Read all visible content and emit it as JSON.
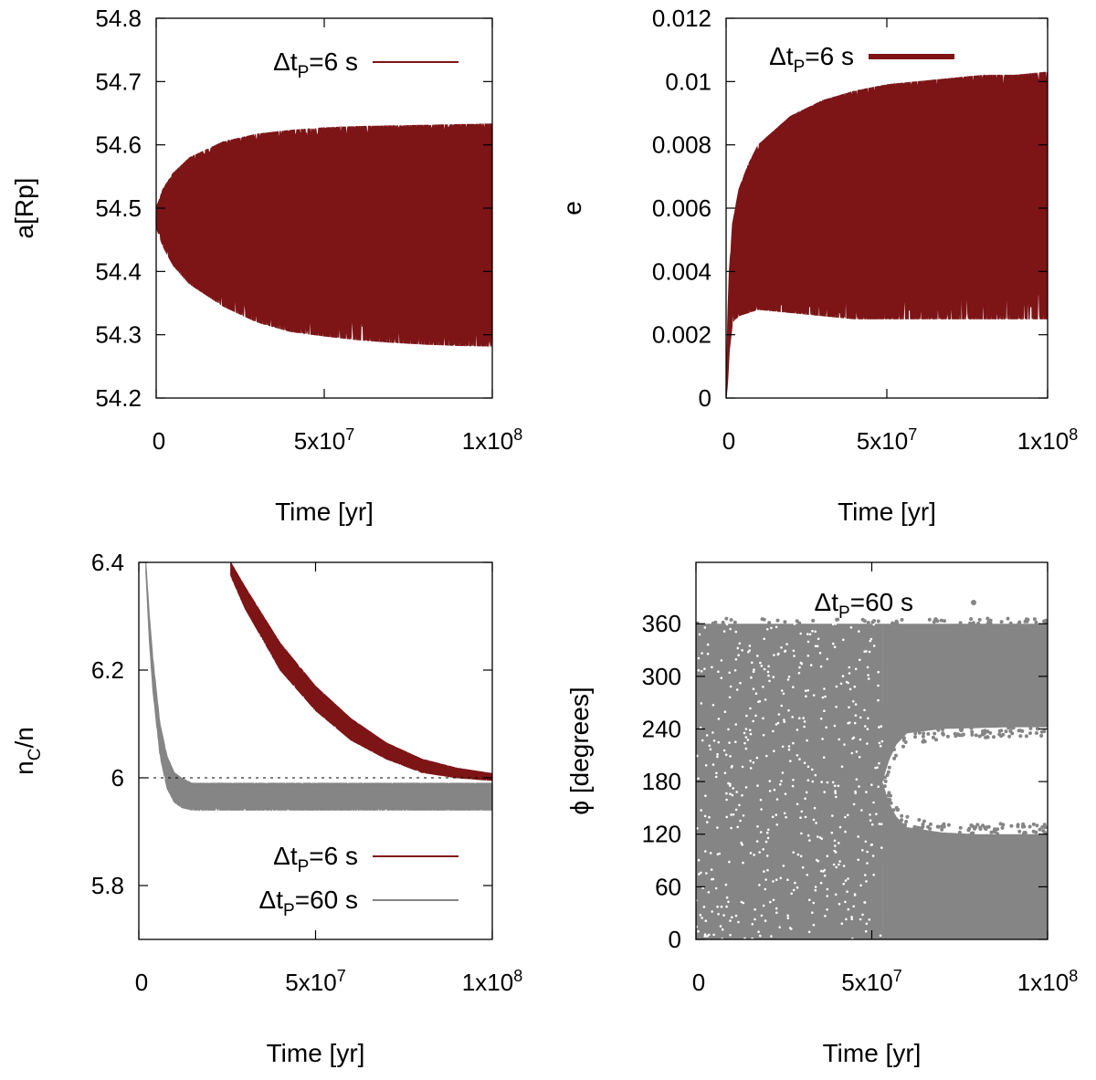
{
  "colors": {
    "dark_red": "#7d1416",
    "gray": "#858585",
    "axis": "#000000"
  },
  "chart_data": [
    {
      "id": "a",
      "type": "area",
      "title": "",
      "xlabel": "Time [yr]",
      "ylabel": "a[Rp]",
      "xlim": [
        0,
        100000000
      ],
      "ylim": [
        54.2,
        54.8
      ],
      "xticks": [
        0,
        50000000,
        100000000
      ],
      "xtick_labels": [
        {
          "base": "0",
          "exp": ""
        },
        {
          "base": "5x10",
          "exp": "7"
        },
        {
          "base": "1x10",
          "exp": "8"
        }
      ],
      "yticks": [
        54.2,
        54.3,
        54.4,
        54.5,
        54.6,
        54.7,
        54.8
      ],
      "ytick_labels": [
        "54.2",
        "54.3",
        "54.4",
        "54.5",
        "54.6",
        "54.7",
        "54.8"
      ],
      "legend": {
        "position": "top-right",
        "entries": [
          {
            "label_prefix": "Δt",
            "label_sub": "P",
            "label_suffix": "=6 s",
            "color": "#7d1416"
          }
        ]
      },
      "series": [
        {
          "name": "ΔtP=6 s",
          "color": "#7d1416",
          "x": [
            0,
            2000000,
            5000000,
            10000000,
            20000000,
            30000000,
            40000000,
            50000000,
            60000000,
            70000000,
            80000000,
            90000000,
            100000000
          ],
          "upper": [
            54.5,
            54.53,
            54.555,
            54.58,
            54.605,
            54.617,
            54.623,
            54.627,
            54.629,
            54.63,
            54.631,
            54.632,
            54.633
          ],
          "lower": [
            54.47,
            54.44,
            54.41,
            54.38,
            54.345,
            54.32,
            54.305,
            54.298,
            54.292,
            54.288,
            54.285,
            54.283,
            54.282
          ]
        }
      ]
    },
    {
      "id": "e",
      "type": "area",
      "title": "",
      "xlabel": "Time [yr]",
      "ylabel": "e",
      "xlim": [
        0,
        100000000
      ],
      "ylim": [
        0,
        0.012
      ],
      "xticks": [
        0,
        50000000,
        100000000
      ],
      "xtick_labels": [
        {
          "base": "0",
          "exp": ""
        },
        {
          "base": "5x10",
          "exp": "7"
        },
        {
          "base": "1x10",
          "exp": "8"
        }
      ],
      "yticks": [
        0,
        0.002,
        0.004,
        0.006,
        0.008,
        0.01,
        0.012
      ],
      "ytick_labels": [
        "0",
        "0.002",
        "0.004",
        "0.006",
        "0.008",
        "0.01",
        "0.012"
      ],
      "legend": {
        "position": "top-right",
        "entries": [
          {
            "label_prefix": "Δt",
            "label_sub": "P",
            "label_suffix": "=6 s",
            "color": "#7d1416"
          }
        ]
      },
      "series": [
        {
          "name": "ΔtP=6 s",
          "color": "#7d1416",
          "x": [
            0,
            500000,
            1000000,
            2000000,
            4000000,
            7000000,
            10000000,
            20000000,
            30000000,
            40000000,
            50000000,
            60000000,
            70000000,
            80000000,
            90000000,
            100000000
          ],
          "upper": [
            0,
            0.0025,
            0.004,
            0.0055,
            0.0066,
            0.0074,
            0.008,
            0.0089,
            0.0094,
            0.0097,
            0.0099,
            0.01,
            0.0101,
            0.0102,
            0.0102,
            0.0103
          ],
          "lower": [
            0,
            0.0005,
            0.0015,
            0.0024,
            0.0026,
            0.0027,
            0.0028,
            0.0027,
            0.0026,
            0.0025,
            0.0025,
            0.0025,
            0.0025,
            0.0025,
            0.0025,
            0.0025
          ]
        }
      ]
    },
    {
      "id": "nc",
      "type": "area",
      "title": "",
      "xlabel": "Time [yr]",
      "ylabel_main": "n",
      "ylabel_sub": "C",
      "ylabel_tail": "/n",
      "xlim": [
        0,
        100000000
      ],
      "ylim": [
        5.7,
        6.4
      ],
      "xticks": [
        0,
        50000000,
        100000000
      ],
      "xtick_labels": [
        {
          "base": "0",
          "exp": ""
        },
        {
          "base": "5x10",
          "exp": "7"
        },
        {
          "base": "1x10",
          "exp": "8"
        }
      ],
      "yticks": [
        5.8,
        6,
        6.2,
        6.4
      ],
      "ytick_labels": [
        "5.8",
        "6",
        "6.2",
        "6.4"
      ],
      "reference_line": 6,
      "legend": {
        "position": "bottom-right",
        "entries": [
          {
            "label_prefix": "Δt",
            "label_sub": "P",
            "label_suffix": "=6 s",
            "color": "#7d1416"
          },
          {
            "label_prefix": "Δt",
            "label_sub": "P",
            "label_suffix": "=60 s",
            "color": "#858585"
          }
        ]
      },
      "series": [
        {
          "name": "ΔtP=6 s",
          "color": "#7d1416",
          "x": [
            26000000,
            30000000,
            40000000,
            50000000,
            60000000,
            70000000,
            80000000,
            90000000,
            100000000
          ],
          "upper": [
            6.4,
            6.355,
            6.25,
            6.17,
            6.11,
            6.065,
            6.035,
            6.018,
            6.008
          ],
          "lower": [
            6.375,
            6.315,
            6.2,
            6.125,
            6.07,
            6.035,
            6.01,
            6.0,
            5.995
          ]
        },
        {
          "name": "ΔtP=60 s",
          "color": "#858585",
          "x": [
            2000000,
            3000000,
            4000000,
            6000000,
            8000000,
            10000000,
            12000000,
            15000000,
            20000000,
            30000000,
            50000000,
            100000000
          ],
          "upper": [
            6.4,
            6.3,
            6.22,
            6.1,
            6.04,
            6.01,
            6.0,
            5.99,
            5.99,
            5.99,
            5.99,
            5.99
          ],
          "lower": [
            6.38,
            6.25,
            6.16,
            6.04,
            5.98,
            5.955,
            5.945,
            5.94,
            5.94,
            5.94,
            5.94,
            5.94
          ]
        }
      ]
    },
    {
      "id": "phi",
      "type": "scatter",
      "title": "",
      "xlabel": "Time [yr]",
      "ylabel": "ϕ [degrees]",
      "xlim": [
        0,
        100000000
      ],
      "ylim": [
        0,
        430
      ],
      "xticks": [
        0,
        50000000,
        100000000
      ],
      "xtick_labels": [
        {
          "base": "0",
          "exp": ""
        },
        {
          "base": "5x10",
          "exp": "7"
        },
        {
          "base": "1x10",
          "exp": "8"
        }
      ],
      "yticks": [
        0,
        60,
        120,
        180,
        240,
        300,
        360
      ],
      "ytick_labels": [
        "0",
        "60",
        "120",
        "180",
        "240",
        "300",
        "360"
      ],
      "legend": {
        "position": "top-right",
        "entries": [
          {
            "label_prefix": "Δt",
            "label_sub": "P",
            "label_suffix": "=60 s",
            "color": "#858585"
          }
        ]
      },
      "series": [
        {
          "name": "ΔtP=60 s",
          "color": "#858585",
          "description_points": "dense points filling 0-360 deg; after ~5.3e7 yr a gap opens between ~120 and ~240 deg",
          "band_full": {
            "x": [
              0,
              100000000
            ],
            "y": [
              0,
              360
            ]
          },
          "gap": {
            "x_start": 53000000,
            "x": [
              53000000,
              55000000,
              57000000,
              60000000,
              70000000,
              80000000,
              90000000,
              100000000
            ],
            "low": [
              180,
              155,
              140,
              128,
              122,
              120,
              120,
              120
            ],
            "high": [
              180,
              205,
              222,
              235,
              240,
              241,
              242,
              242
            ]
          }
        }
      ]
    }
  ]
}
